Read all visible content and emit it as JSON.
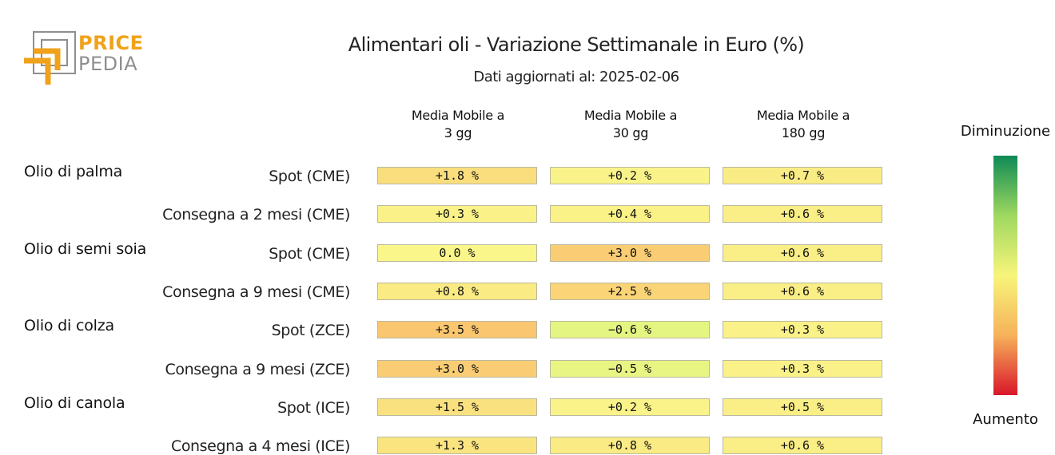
{
  "logo": {
    "word1": "PRICE",
    "word2": "PEDIA",
    "colors": {
      "orange": "#f0a21a",
      "gray": "#8f8f8f"
    }
  },
  "header": {
    "title": "Alimentari oli - Variazione Settimanale in Euro (%)",
    "subtitle": "Dati aggiornati al: 2025-02-06"
  },
  "legend": {
    "top_label": "Diminuzione",
    "bottom_label": "Aumento",
    "colors": [
      "#0e8a55",
      "#9fd860",
      "#f7f57a",
      "#f6b25a",
      "#d9162a"
    ]
  },
  "chart_data": {
    "type": "table",
    "title": "Alimentari oli - Variazione Settimanale in Euro (%)",
    "columns": [
      {
        "line1": "Media Mobile a",
        "line2": "3 gg"
      },
      {
        "line1": "Media Mobile a",
        "line2": "30 gg"
      },
      {
        "line1": "Media Mobile a",
        "line2": "180 gg"
      }
    ],
    "groups": [
      {
        "name": "Olio di palma",
        "rows": [
          {
            "label": "Spot (CME)",
            "values": [
              1.8,
              0.2,
              0.7
            ],
            "texts": [
              "+1.8 %",
              "+0.2 %",
              "+0.7 %"
            ]
          },
          {
            "label": "Consegna a 2 mesi (CME)",
            "values": [
              0.3,
              0.4,
              0.6
            ],
            "texts": [
              "+0.3 %",
              "+0.4 %",
              "+0.6 %"
            ]
          }
        ]
      },
      {
        "name": "Olio di semi soia",
        "rows": [
          {
            "label": "Spot (CME)",
            "values": [
              0.0,
              3.0,
              0.6
            ],
            "texts": [
              "0.0 %",
              "+3.0 %",
              "+0.6 %"
            ]
          },
          {
            "label": "Consegna a 9 mesi (CME)",
            "values": [
              0.8,
              2.5,
              0.6
            ],
            "texts": [
              "+0.8 %",
              "+2.5 %",
              "+0.6 %"
            ]
          }
        ]
      },
      {
        "name": "Olio di colza",
        "rows": [
          {
            "label": "Spot (ZCE)",
            "values": [
              3.5,
              -0.6,
              0.3
            ],
            "texts": [
              "+3.5 %",
              "−0.6 %",
              "+0.3 %"
            ]
          },
          {
            "label": "Consegna a 9 mesi (ZCE)",
            "values": [
              3.0,
              -0.5,
              0.3
            ],
            "texts": [
              "+3.0 %",
              "−0.5 %",
              "+0.3 %"
            ]
          }
        ]
      },
      {
        "name": "Olio di canola",
        "rows": [
          {
            "label": "Spot (ICE)",
            "values": [
              1.5,
              0.2,
              0.5
            ],
            "texts": [
              "+1.5 %",
              "+0.2 %",
              "+0.5 %"
            ]
          },
          {
            "label": "Consegna a 4 mesi (ICE)",
            "values": [
              1.3,
              0.8,
              0.6
            ],
            "texts": [
              "+1.3 %",
              "+0.8 %",
              "+0.6 %"
            ]
          }
        ]
      }
    ]
  }
}
